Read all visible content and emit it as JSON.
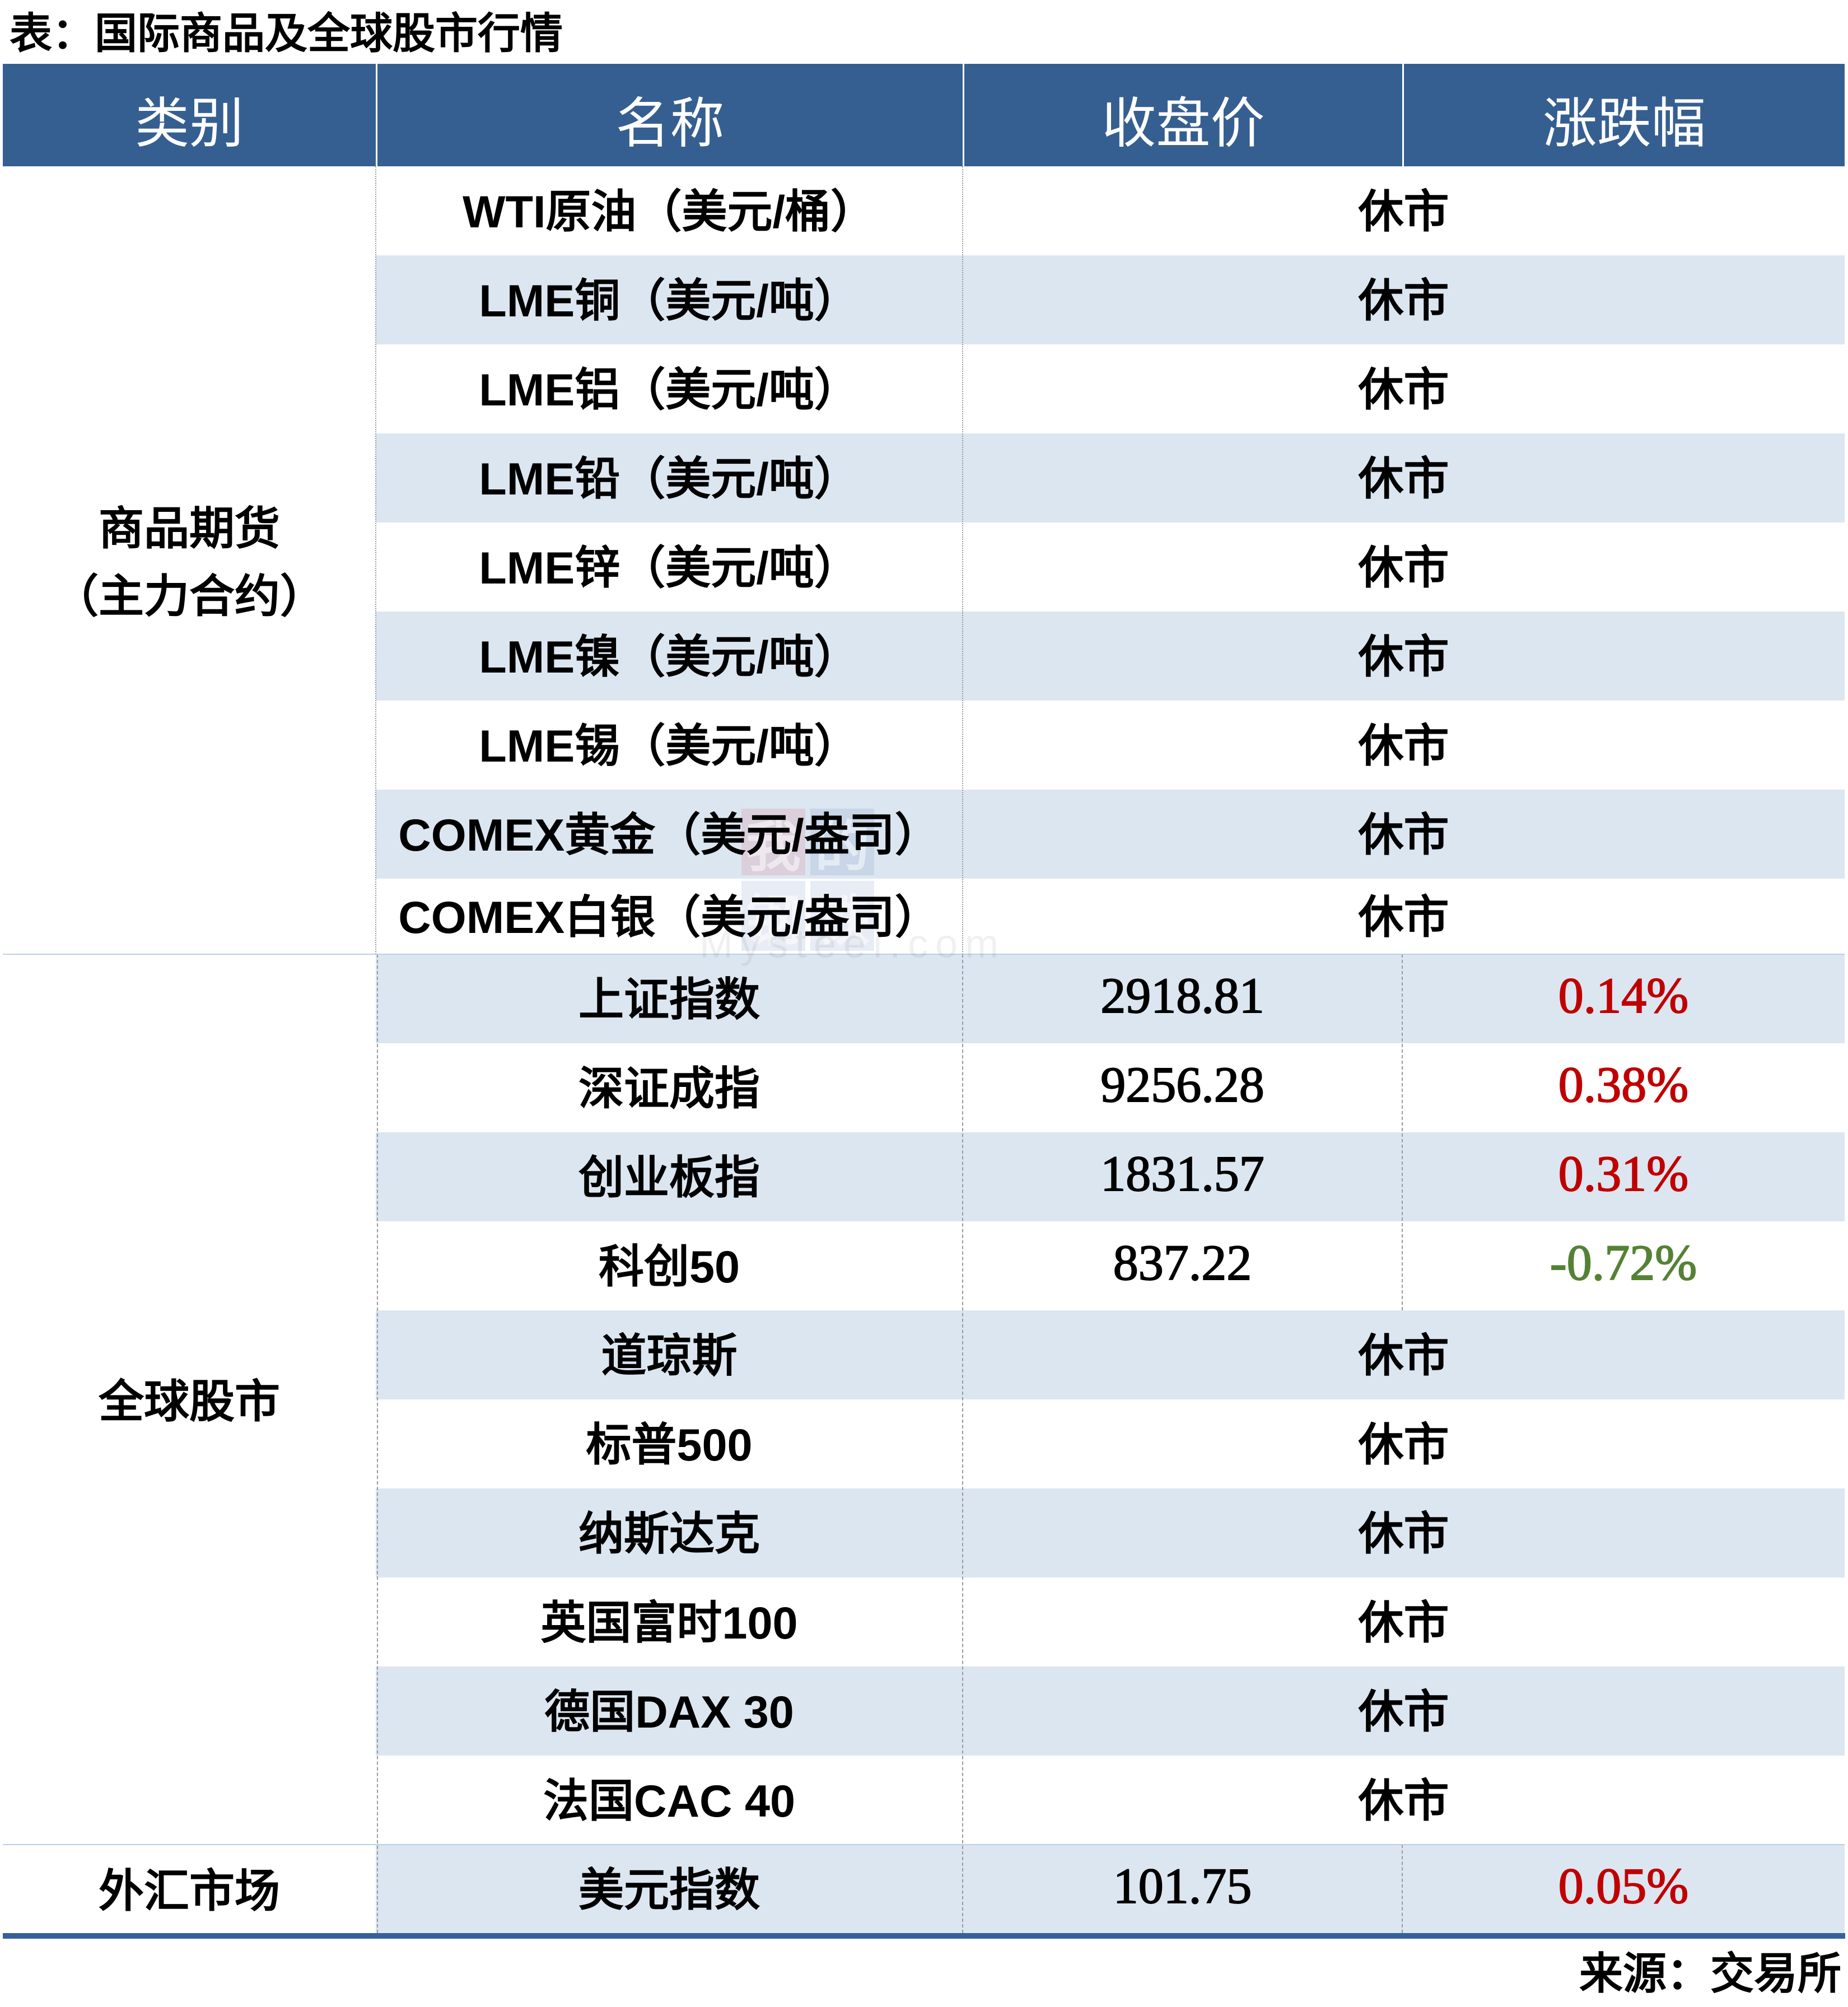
{
  "title": "表：国际商品及全球股市行情",
  "source_note": "来源：交易所",
  "watermark": {
    "grid_chars": [
      "我",
      "的",
      "钢",
      "铁"
    ],
    "text": "Mysteel.com"
  },
  "colors": {
    "header_bg": "#365F91",
    "zebra_row_bg": "#DCE6F1",
    "group_divider": "#BCCFE4",
    "bottom_border": "#36609B",
    "up_red": "#C00000",
    "down_green": "#548235"
  },
  "table": {
    "columns": [
      "类别",
      "名称",
      "收盘价",
      "涨跌幅"
    ],
    "closed_label": "休市",
    "groups": [
      {
        "category_lines": [
          "商品期货",
          "（主力合约）"
        ],
        "rows": [
          {
            "name": "WTI原油（美元/桶）",
            "closed": true
          },
          {
            "name": "LME铜（美元/吨）",
            "closed": true
          },
          {
            "name": "LME铝（美元/吨）",
            "closed": true
          },
          {
            "name": "LME铅（美元/吨）",
            "closed": true
          },
          {
            "name": "LME锌（美元/吨）",
            "closed": true
          },
          {
            "name": "LME镍（美元/吨）",
            "closed": true
          },
          {
            "name": "LME锡（美元/吨）",
            "closed": true
          },
          {
            "name": "COMEX黄金（美元/盎司）",
            "closed": true
          },
          {
            "name": "COMEX白银（美元/盎司）",
            "closed": true
          }
        ]
      },
      {
        "category_lines": [
          "全球股市"
        ],
        "rows": [
          {
            "name": "上证指数",
            "close": "2918.81",
            "change": "0.14%",
            "direction": "up"
          },
          {
            "name": "深证成指",
            "close": "9256.28",
            "change": "0.38%",
            "direction": "up"
          },
          {
            "name": "创业板指",
            "close": "1831.57",
            "change": "0.31%",
            "direction": "up"
          },
          {
            "name": "科创50",
            "close": "837.22",
            "change": "-0.72%",
            "direction": "down"
          },
          {
            "name": "道琼斯",
            "closed": true
          },
          {
            "name": "标普500",
            "closed": true
          },
          {
            "name": "纳斯达克",
            "closed": true
          },
          {
            "name": "英国富时100",
            "closed": true
          },
          {
            "name": "德国DAX 30",
            "closed": true
          },
          {
            "name": "法国CAC 40",
            "closed": true
          }
        ]
      },
      {
        "category_lines": [
          "外汇市场"
        ],
        "rows": [
          {
            "name": "美元指数",
            "close": "101.75",
            "change": "0.05%",
            "direction": "up"
          }
        ]
      }
    ]
  }
}
